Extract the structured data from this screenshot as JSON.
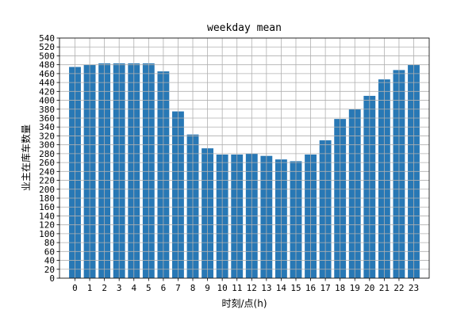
{
  "chart_data": {
    "type": "bar",
    "title": "weekday mean",
    "xlabel": "时刻/点(h)",
    "ylabel": "业主在库车数量",
    "categories": [
      "0",
      "1",
      "2",
      "3",
      "4",
      "5",
      "6",
      "7",
      "8",
      "9",
      "10",
      "11",
      "12",
      "13",
      "14",
      "15",
      "16",
      "17",
      "18",
      "19",
      "20",
      "21",
      "22",
      "23"
    ],
    "values": [
      475,
      480,
      483,
      483,
      483,
      483,
      465,
      375,
      323,
      292,
      278,
      278,
      280,
      275,
      267,
      263,
      278,
      310,
      358,
      380,
      410,
      447,
      468,
      480
    ],
    "ylim": [
      0,
      540
    ],
    "yticks": [
      0,
      20,
      40,
      60,
      80,
      100,
      120,
      140,
      160,
      180,
      200,
      220,
      240,
      260,
      280,
      300,
      320,
      340,
      360,
      380,
      400,
      420,
      440,
      460,
      480,
      500,
      520,
      540
    ],
    "grid": true,
    "bar_color": "#2878b5"
  }
}
